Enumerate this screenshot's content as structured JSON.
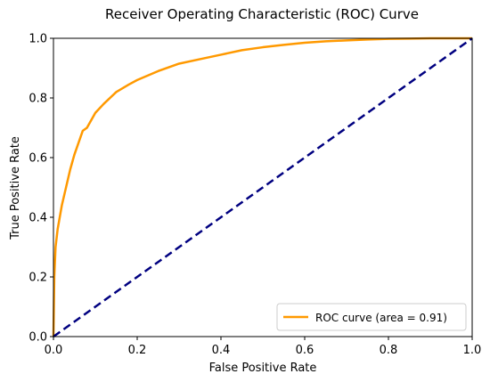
{
  "chart_data": {
    "type": "line",
    "title": "Receiver Operating Characteristic (ROC) Curve",
    "xlabel": "False Positive Rate",
    "ylabel": "True Positive Rate",
    "xlim": [
      0.0,
      1.0
    ],
    "ylim": [
      0.0,
      1.0
    ],
    "x_ticks": [
      "0.0",
      "0.2",
      "0.4",
      "0.6",
      "0.8",
      "1.0"
    ],
    "y_ticks": [
      "0.0",
      "0.2",
      "0.4",
      "0.6",
      "0.8",
      "1.0"
    ],
    "grid": false,
    "legend_position": "lower right",
    "series": [
      {
        "name": "ROC curve (area = 0.91)",
        "color": "#ff9900",
        "style": "solid",
        "x": [
          0.0,
          0.002,
          0.005,
          0.01,
          0.015,
          0.02,
          0.03,
          0.04,
          0.05,
          0.06,
          0.07,
          0.08,
          0.1,
          0.12,
          0.15,
          0.18,
          0.2,
          0.25,
          0.3,
          0.35,
          0.4,
          0.45,
          0.5,
          0.55,
          0.6,
          0.65,
          0.7,
          0.75,
          0.8,
          0.85,
          0.9,
          0.95,
          1.0
        ],
        "y": [
          0.0,
          0.2,
          0.3,
          0.36,
          0.4,
          0.44,
          0.5,
          0.56,
          0.61,
          0.65,
          0.69,
          0.7,
          0.75,
          0.78,
          0.82,
          0.845,
          0.86,
          0.89,
          0.915,
          0.93,
          0.945,
          0.96,
          0.97,
          0.978,
          0.985,
          0.99,
          0.993,
          0.996,
          0.998,
          0.999,
          1.0,
          1.0,
          1.0
        ]
      },
      {
        "name": "",
        "color": "#000080",
        "style": "dashed",
        "x": [
          0.0,
          1.0
        ],
        "y": [
          0.0,
          1.0
        ]
      }
    ]
  }
}
